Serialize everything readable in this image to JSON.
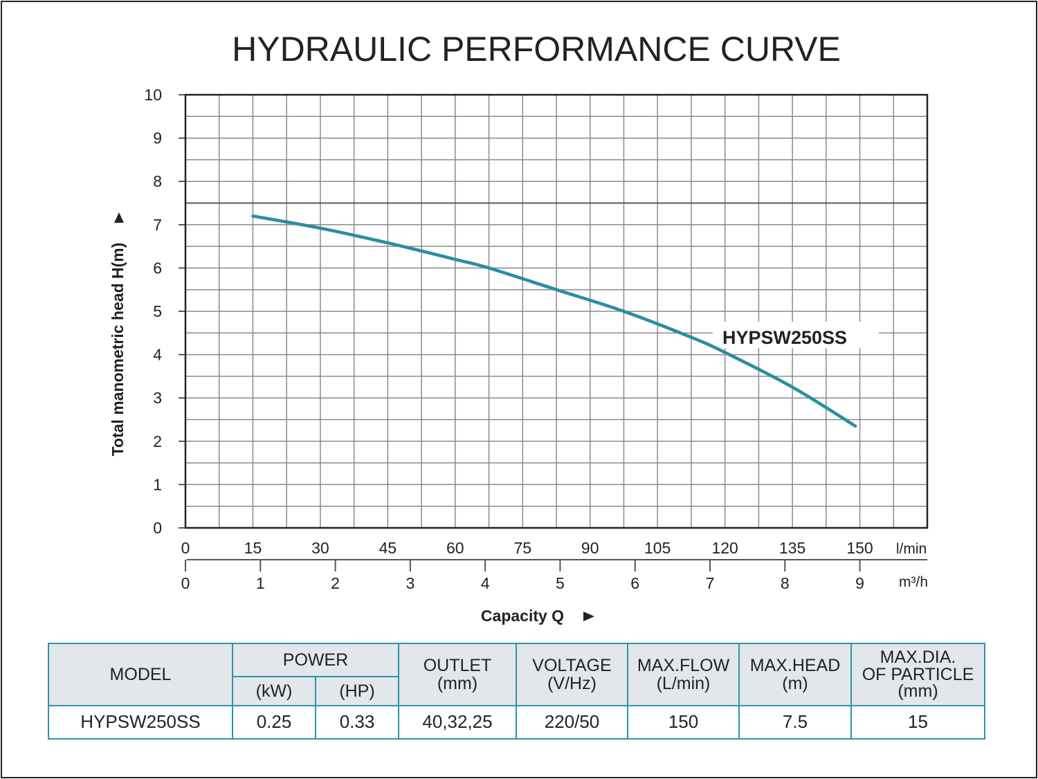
{
  "chart_data": {
    "type": "line",
    "title": "HYDRAULIC PERFORMANCE CURVE",
    "xlabel": "Capacity Q",
    "ylabel": "Total manometric head H(m)",
    "x_unit": "l/min",
    "x2_unit": "m³/h",
    "xlim": [
      0,
      165
    ],
    "ylim": [
      0,
      10
    ],
    "x_ticks": [
      0,
      15,
      30,
      45,
      60,
      75,
      90,
      105,
      120,
      135,
      150
    ],
    "x2_ticks": [
      0,
      1,
      2,
      3,
      4,
      5,
      6,
      7,
      8,
      9
    ],
    "y_ticks": [
      0,
      1,
      2,
      3,
      4,
      5,
      6,
      7,
      8,
      9,
      10
    ],
    "grid": true,
    "series": [
      {
        "name": "HYPSW250SS",
        "color": "#2a8fa0",
        "x": [
          15,
          30,
          45,
          60,
          67.5,
          82.5,
          97.5,
          112.5,
          120,
          135,
          149
        ],
        "y": [
          7.2,
          6.92,
          6.58,
          6.2,
          6.0,
          5.5,
          5.0,
          4.4,
          4.05,
          3.25,
          2.35
        ]
      }
    ],
    "reference_line_y": 7.5
  },
  "spec_table": {
    "headers": {
      "model": "MODEL",
      "power": "POWER",
      "kw": "(kW)",
      "hp": "(HP)",
      "outlet": [
        "OUTLET",
        "(mm)"
      ],
      "voltage": [
        "VOLTAGE",
        "(V/Hz)"
      ],
      "max_flow": [
        "MAX.FLOW",
        "(L/min)"
      ],
      "max_head": [
        "MAX.HEAD",
        "(m)"
      ],
      "max_dia": [
        "MAX.DIA.",
        "OF PARTICLE",
        "(mm)"
      ]
    },
    "row": {
      "model": "HYPSW250SS",
      "kw": "0.25",
      "hp": "0.33",
      "outlet": "40,32,25",
      "voltage": "220/50",
      "max_flow": "150",
      "max_head": "7.5",
      "max_dia": "15"
    },
    "border_color": "#2a94ab",
    "header_bg": "#e3e6ea"
  }
}
